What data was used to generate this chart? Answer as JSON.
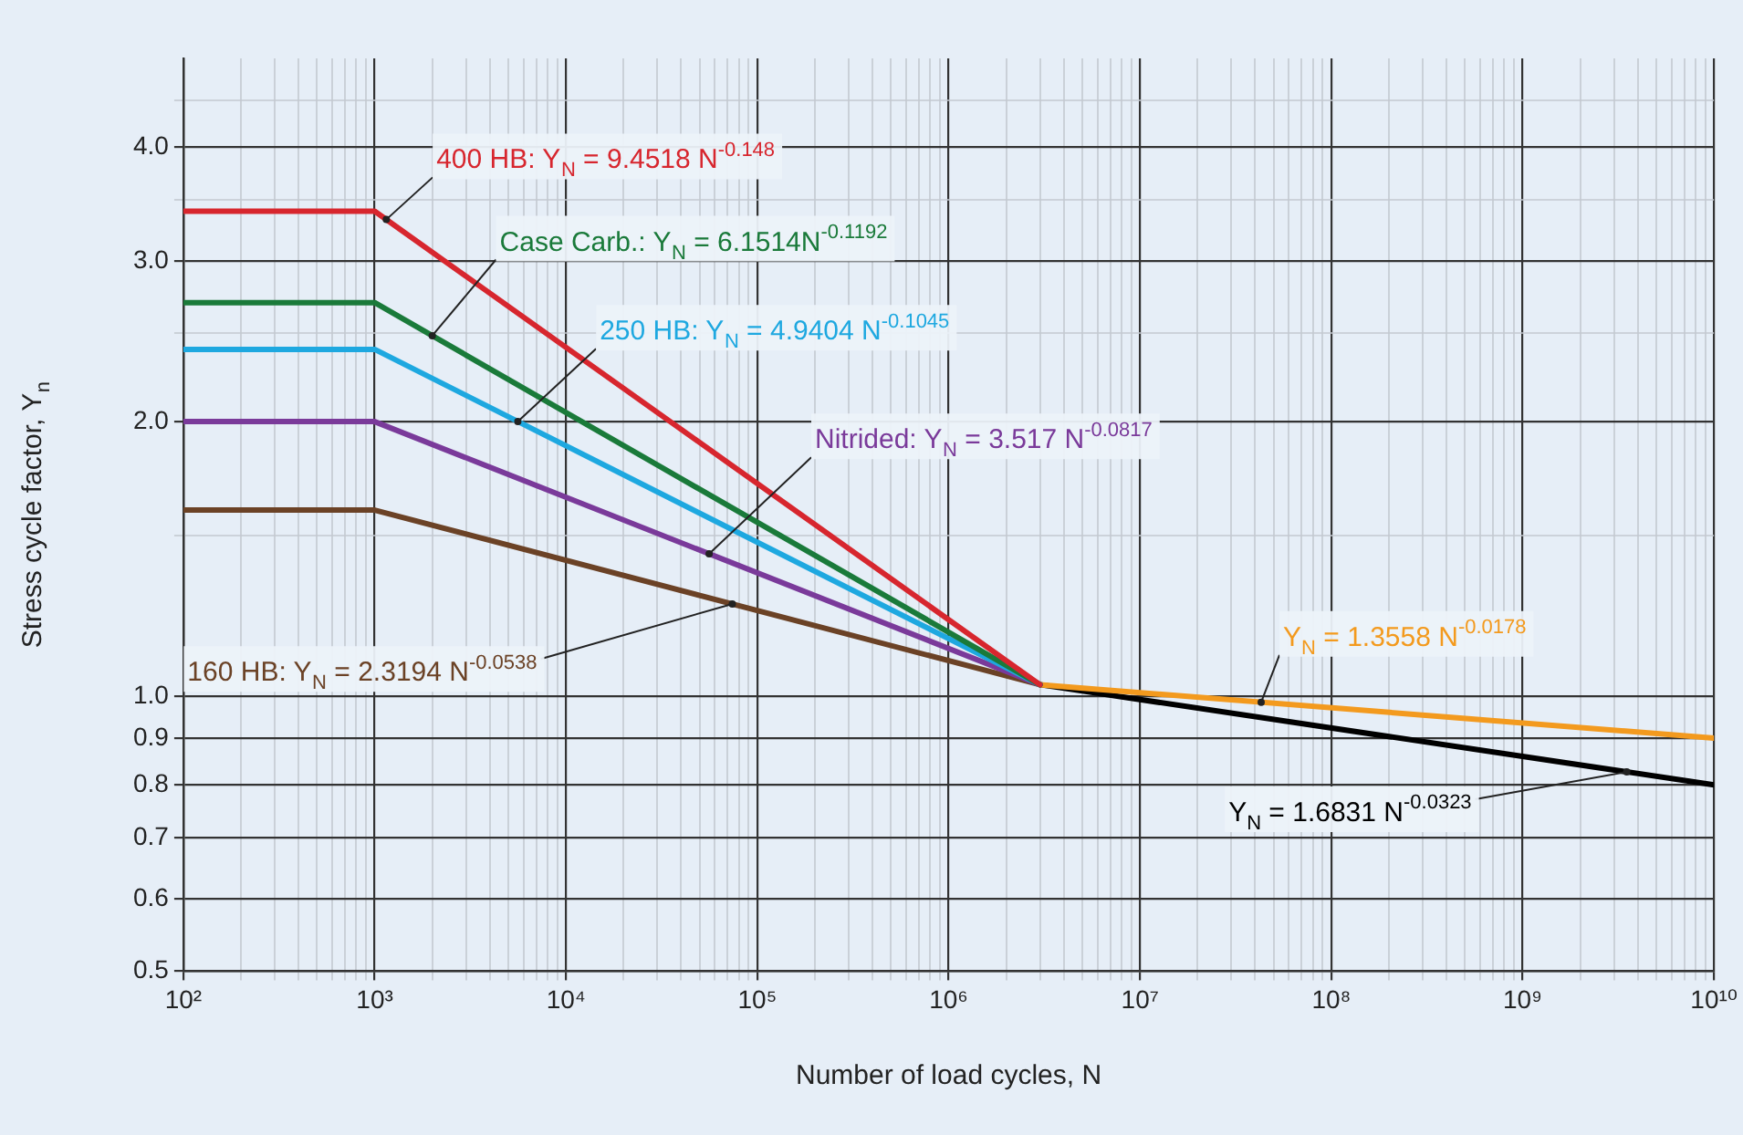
{
  "chart_data": {
    "type": "line",
    "xlabel": "Number of load cycles, N",
    "ylabel": "Stress cycle factor, Y$_{n}$",
    "log": "xy",
    "grid": true,
    "legend": false,
    "marker": "none",
    "line_style": "solid",
    "xlim": [
      100,
      10000000000
    ],
    "xticks": [
      {
        "value": 100,
        "label": "10²"
      },
      {
        "value": 200,
        "label": null
      },
      {
        "value": 300,
        "label": null
      },
      {
        "value": 400,
        "label": null
      },
      {
        "value": 500,
        "label": null
      },
      {
        "value": 600,
        "label": null
      },
      {
        "value": 700,
        "label": null
      },
      {
        "value": 800,
        "label": null
      },
      {
        "value": 900,
        "label": null
      },
      {
        "value": 1000,
        "label": "10³"
      },
      {
        "value": 2000,
        "label": null
      },
      {
        "value": 3000,
        "label": null
      },
      {
        "value": 4000,
        "label": null
      },
      {
        "value": 5000,
        "label": null
      },
      {
        "value": 6000,
        "label": null
      },
      {
        "value": 7000,
        "label": null
      },
      {
        "value": 8000,
        "label": null
      },
      {
        "value": 9000,
        "label": null
      },
      {
        "value": 10000,
        "label": "10⁴"
      },
      {
        "value": 20000,
        "label": null
      },
      {
        "value": 30000,
        "label": null
      },
      {
        "value": 40000,
        "label": null
      },
      {
        "value": 50000,
        "label": null
      },
      {
        "value": 60000,
        "label": null
      },
      {
        "value": 70000,
        "label": null
      },
      {
        "value": 80000,
        "label": null
      },
      {
        "value": 90000,
        "label": null
      },
      {
        "value": 100000,
        "label": "10⁵"
      },
      {
        "value": 200000,
        "label": null
      },
      {
        "value": 300000,
        "label": null
      },
      {
        "value": 400000,
        "label": null
      },
      {
        "value": 500000,
        "label": null
      },
      {
        "value": 600000,
        "label": null
      },
      {
        "value": 700000,
        "label": null
      },
      {
        "value": 800000,
        "label": null
      },
      {
        "value": 900000,
        "label": null
      },
      {
        "value": 1000000,
        "label": "10⁶"
      },
      {
        "value": 2000000,
        "label": null
      },
      {
        "value": 3000000,
        "label": null
      },
      {
        "value": 4000000,
        "label": null
      },
      {
        "value": 5000000,
        "label": null
      },
      {
        "value": 6000000,
        "label": null
      },
      {
        "value": 7000000,
        "label": null
      },
      {
        "value": 8000000,
        "label": null
      },
      {
        "value": 9000000,
        "label": null
      },
      {
        "value": 10000000,
        "label": "10⁷"
      },
      {
        "value": 20000000,
        "label": null
      },
      {
        "value": 30000000,
        "label": null
      },
      {
        "value": 40000000,
        "label": null
      },
      {
        "value": 50000000,
        "label": null
      },
      {
        "value": 60000000,
        "label": null
      },
      {
        "value": 70000000,
        "label": null
      },
      {
        "value": 80000000,
        "label": null
      },
      {
        "value": 90000000,
        "label": null
      },
      {
        "value": 100000000,
        "label": "10⁸"
      },
      {
        "value": 200000000,
        "label": null
      },
      {
        "value": 300000000,
        "label": null
      },
      {
        "value": 400000000,
        "label": null
      },
      {
        "value": 500000000,
        "label": null
      },
      {
        "value": 600000000,
        "label": null
      },
      {
        "value": 700000000,
        "label": null
      },
      {
        "value": 800000000,
        "label": null
      },
      {
        "value": 900000000,
        "label": null
      },
      {
        "value": 1000000000,
        "label": "10⁹"
      },
      {
        "value": 2000000000,
        "label": null
      },
      {
        "value": 3000000000,
        "label": null
      },
      {
        "value": 4000000000,
        "label": null
      },
      {
        "value": 5000000000,
        "label": null
      },
      {
        "value": 6000000000,
        "label": null
      },
      {
        "value": 7000000000,
        "label": null
      },
      {
        "value": 8000000000,
        "label": null
      },
      {
        "value": 9000000000,
        "label": null
      },
      {
        "value": 10000000000,
        "label": "10¹⁰"
      }
    ],
    "ylim": [
      0.5,
      5
    ],
    "yticks": [
      0.5,
      0.6,
      0.7,
      0.8,
      0.9,
      {
        "value": 1,
        "label": "1.0"
      },
      {
        "value": 1.5,
        "label": null
      },
      {
        "value": 2,
        "label": "2.0"
      },
      {
        "value": 2.5,
        "label": null
      },
      {
        "value": 3,
        "label": "3.0"
      },
      {
        "value": 3.5,
        "label": null
      },
      {
        "value": 4,
        "label": "4.0"
      },
      {
        "value": 4.5,
        "label": null
      }
    ],
    "series": [
      {
        "name": "400 HB: Y$_{N}$ = 9.4518 N$^{-0.148}$",
        "color": "#d7262e",
        "x": [
          100,
          1000,
          3000000
        ],
        "values": [
          3.4,
          3.4,
          1.03
        ]
      },
      {
        "name": "Case Carb.: Y$_{N}$ = 6.1514N$^{-0.1192}$",
        "color": "#1a7a3a",
        "x": [
          100,
          1000,
          3000000
        ],
        "values": [
          2.7,
          2.7,
          1.03
        ]
      },
      {
        "name": "250 HB: Y$_{N}$ = 4.9404 N$^{-0.1045}$",
        "color": "#1ea8e0",
        "x": [
          100,
          1000,
          3000000
        ],
        "values": [
          2.4,
          2.4,
          1.03
        ]
      },
      {
        "name": "Nitrided: Y$_{N}$ = 3.517 N$^{-0.0817}$",
        "color": "#7a3a9a",
        "x": [
          100,
          1000,
          3000000
        ],
        "values": [
          2.0,
          2.0,
          1.03
        ]
      },
      {
        "name": "160 HB: Y$_{N}$ = 2.3194 N$^{-0.0538}$",
        "color": "#6b4226",
        "x": [
          100,
          1000,
          3000000
        ],
        "values": [
          1.6,
          1.6,
          1.03
        ]
      },
      {
        "name": "Y$_{N}$ = 1.3558 N$^{-0.0178}$",
        "color": "#f39a1e",
        "x": [
          3000000,
          10000000000
        ],
        "values": [
          1.03,
          0.9
        ]
      },
      {
        "name": "Y$_{N}$ = 1.6831 N$^{-0.0323}$",
        "color": "#000000",
        "x": [
          3000000,
          10000000000
        ],
        "values": [
          1.03,
          0.8
        ]
      }
    ]
  }
}
